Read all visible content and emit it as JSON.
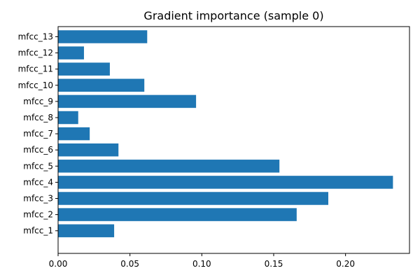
{
  "chart_data": {
    "type": "bar",
    "orientation": "horizontal",
    "title": "Gradient importance (sample 0)",
    "xlabel": "",
    "ylabel": "",
    "categories": [
      "mfcc_1",
      "mfcc_2",
      "mfcc_3",
      "mfcc_4",
      "mfcc_5",
      "mfcc_6",
      "mfcc_7",
      "mfcc_8",
      "mfcc_9",
      "mfcc_10",
      "mfcc_11",
      "mfcc_12",
      "mfcc_13"
    ],
    "values": [
      0.039,
      0.166,
      0.188,
      0.233,
      0.154,
      0.042,
      0.022,
      0.014,
      0.096,
      0.06,
      0.036,
      0.018,
      0.062
    ],
    "xlim": [
      0,
      0.2445
    ],
    "xticks": [
      0.0,
      0.05,
      0.1,
      0.15,
      0.2
    ],
    "xtick_labels": [
      "0.00",
      "0.05",
      "0.10",
      "0.15",
      "0.20"
    ],
    "bar_color": "#1f77b4",
    "grid": false,
    "legend": "none"
  }
}
